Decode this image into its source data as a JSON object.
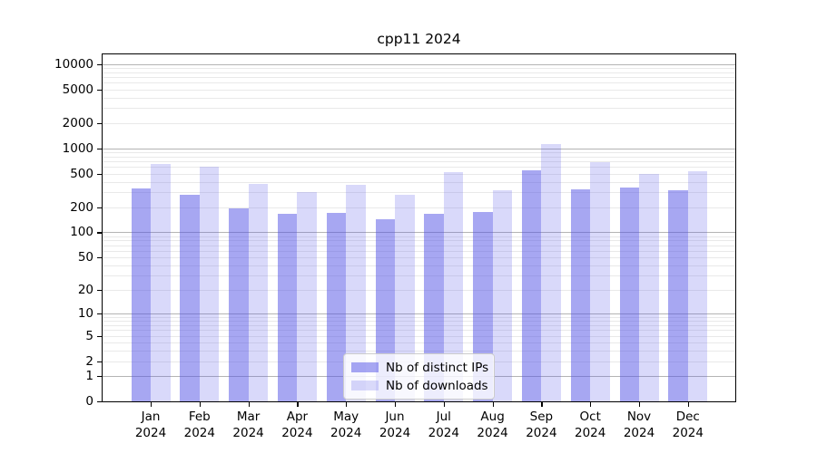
{
  "chart_data": {
    "type": "bar",
    "title": "cpp11 2024",
    "y_scale": "log1p",
    "grid": true,
    "legend_position": "lower center",
    "x_tick_year": "2024",
    "categories": [
      "Jan",
      "Feb",
      "Mar",
      "Apr",
      "May",
      "Jun",
      "Jul",
      "Aug",
      "Sep",
      "Oct",
      "Nov",
      "Dec"
    ],
    "series": [
      {
        "name": "Nb of distinct IPs",
        "color": "#5050e680",
        "values": [
          330,
          283,
          192,
          167,
          170,
          142,
          166,
          173,
          545,
          326,
          342,
          320
        ]
      },
      {
        "name": "Nb of downloads",
        "color": "#5050e638",
        "values": [
          645,
          609,
          377,
          306,
          371,
          283,
          521,
          320,
          1120,
          685,
          491,
          540
        ]
      }
    ],
    "y_ticks": [
      0,
      1,
      2,
      5,
      10,
      20,
      50,
      100,
      200,
      500,
      1000,
      2000,
      5000,
      10000
    ],
    "ylim": [
      0,
      13000
    ],
    "colors": {
      "major_grid": "#b4b4b4",
      "minor_grid": "#e9e9e9",
      "spine": "#000000",
      "text": "#000000",
      "legend_border": "#cccccc"
    }
  }
}
